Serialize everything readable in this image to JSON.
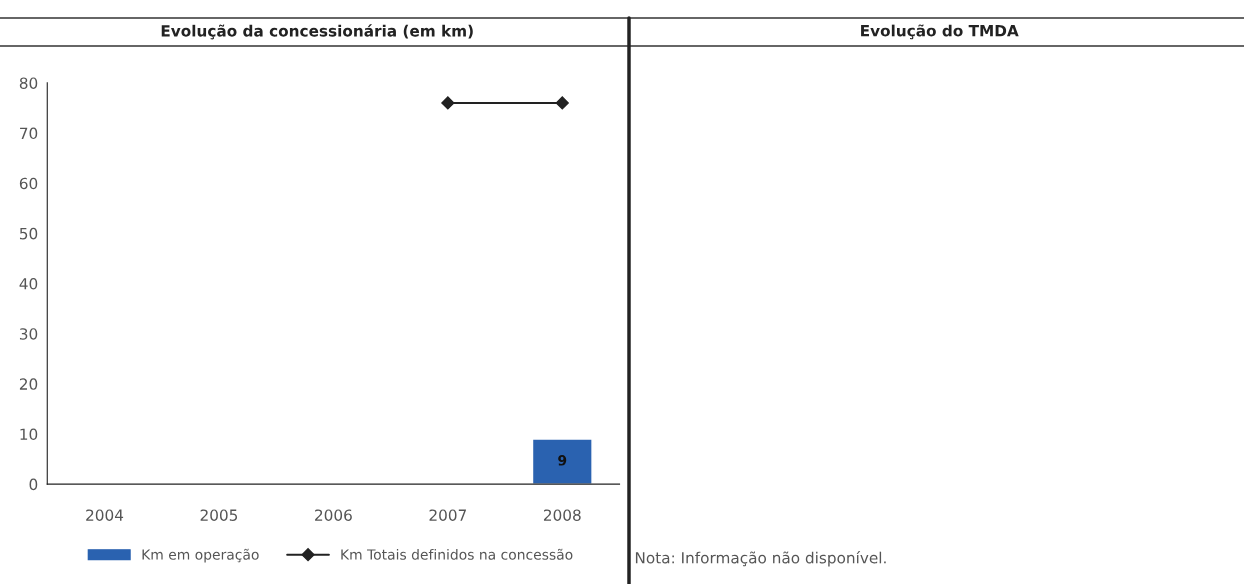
{
  "chart_data": [
    {
      "type": "bar",
      "title": "Evolução da concessionária (em km)",
      "categories": [
        "2004",
        "2005",
        "2006",
        "2007",
        "2008"
      ],
      "series": [
        {
          "name": "Km em operação",
          "type": "bar",
          "color": "#2a62b0",
          "values": [
            null,
            null,
            null,
            null,
            9
          ],
          "value_labels": [
            null,
            null,
            null,
            null,
            "9"
          ]
        },
        {
          "name": "Km Totais definidos na concessão",
          "type": "line",
          "color": "#222222",
          "values": [
            null,
            null,
            null,
            76,
            76
          ],
          "marker": "diamond"
        }
      ],
      "ylim": [
        0,
        80
      ],
      "yticks": [
        0,
        10,
        20,
        30,
        40,
        50,
        60,
        70,
        80
      ],
      "legend": "bottom",
      "grid": false
    },
    {
      "type": "other",
      "title": "Evolução do TMDA",
      "annotations": [
        "Nota: Informação não disponível."
      ]
    }
  ]
}
